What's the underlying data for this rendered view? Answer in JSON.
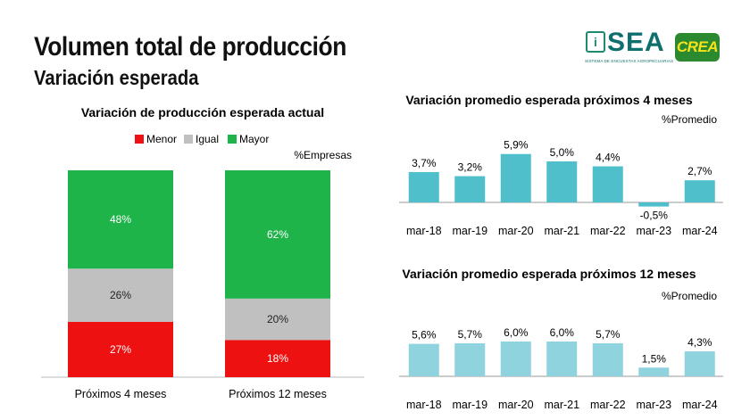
{
  "header": {
    "title": "Volumen total de producción",
    "subtitle": "Variación esperada"
  },
  "logos": {
    "sea_text": "SEA",
    "sea_tagline": "SISTEMA DE ENCUESTAS AGROPECUARIAS",
    "crea_text": "CREA"
  },
  "colors": {
    "menor": "#ee1111",
    "igual": "#c0c0c0",
    "mayor": "#1eb44a",
    "bar4": "#4fbfcc",
    "bar12": "#8ed3de"
  },
  "chart_data": [
    {
      "type": "bar",
      "stacked": true,
      "title": "Variación de producción esperada actual",
      "ylabel": "%Empresas",
      "categories": [
        "Próximos 4 meses",
        "Próximos 12 meses"
      ],
      "series": [
        {
          "name": "Menor",
          "values": [
            27,
            18
          ],
          "labels": [
            "27%",
            "18%"
          ]
        },
        {
          "name": "Igual",
          "values": [
            26,
            20
          ],
          "labels": [
            "26%",
            "20%"
          ]
        },
        {
          "name": "Mayor",
          "values": [
            48,
            62
          ],
          "labels": [
            "48%",
            "62%"
          ]
        }
      ],
      "legend": "top"
    },
    {
      "type": "bar",
      "title": "Variación promedio esperada próximos 4 meses",
      "ylabel": "%Promedio",
      "categories": [
        "mar-18",
        "mar-19",
        "mar-20",
        "mar-21",
        "mar-22",
        "mar-23",
        "mar-24"
      ],
      "values": [
        3.7,
        3.2,
        5.9,
        5.0,
        4.4,
        -0.5,
        2.7
      ],
      "labels": [
        "3,7%",
        "3,2%",
        "5,9%",
        "5,0%",
        "4,4%",
        "-0,5%",
        "2,7%"
      ]
    },
    {
      "type": "bar",
      "title": "Variación promedio esperada próximos 12 meses",
      "ylabel": "%Promedio",
      "categories": [
        "mar-18",
        "mar-19",
        "mar-20",
        "mar-21",
        "mar-22",
        "mar-23",
        "mar-24"
      ],
      "values": [
        5.6,
        5.7,
        6.0,
        6.0,
        5.7,
        1.5,
        4.3
      ],
      "labels": [
        "5,6%",
        "5,7%",
        "6,0%",
        "6,0%",
        "5,7%",
        "1,5%",
        "4,3%"
      ]
    }
  ]
}
